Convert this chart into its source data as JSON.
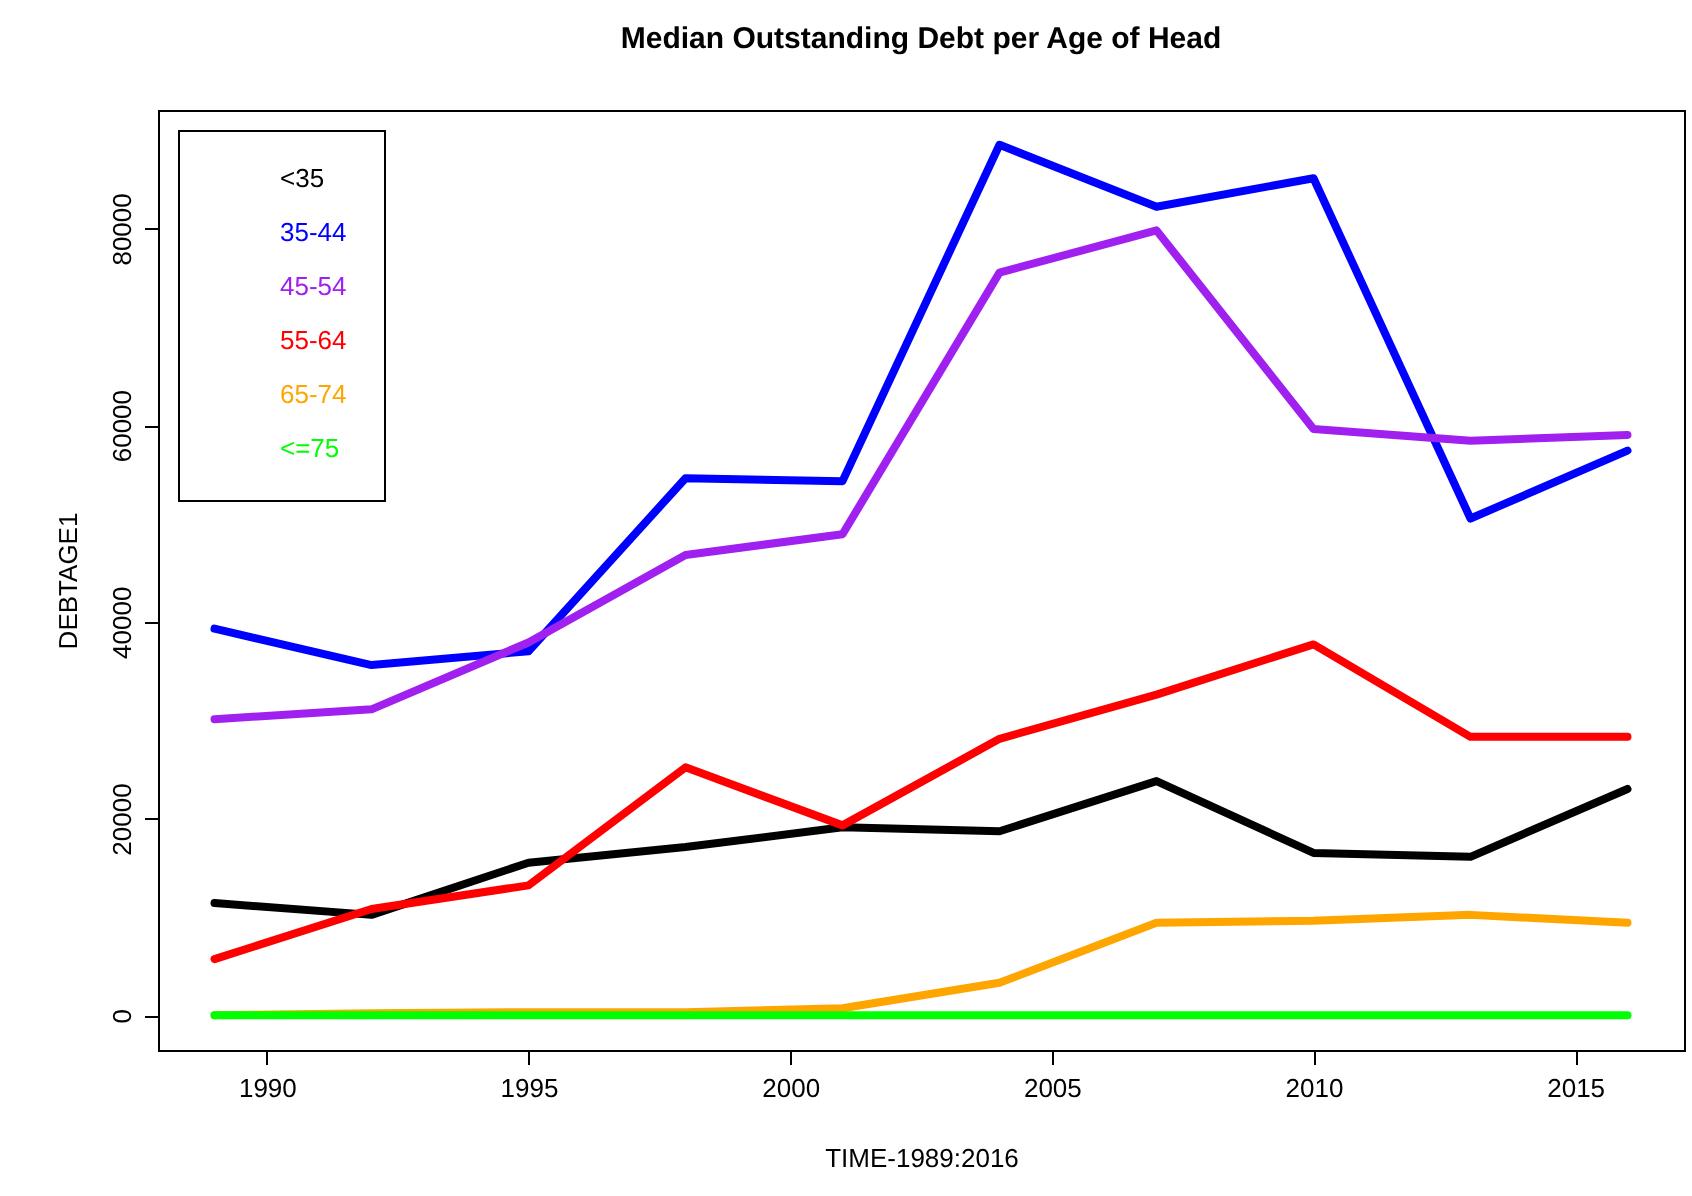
{
  "chart_data": {
    "type": "line",
    "title": "Median Outstanding Debt per Age of Head",
    "xlabel": "TIME-1989:2016",
    "ylabel": "DEBTAGE1",
    "x": [
      1989,
      1992,
      1995,
      1998,
      2001,
      2004,
      2007,
      2010,
      2013,
      2016
    ],
    "series": [
      {
        "name": "<35",
        "color": "#000000",
        "values": [
          11400,
          10200,
          15500,
          17100,
          19100,
          18700,
          23800,
          16500,
          16100,
          23000
        ]
      },
      {
        "name": "35-44",
        "color": "#0000ff",
        "values": [
          39300,
          35600,
          37000,
          54600,
          54300,
          88500,
          82200,
          85100,
          50500,
          57400
        ]
      },
      {
        "name": "45-54",
        "color": "#a020f0",
        "values": [
          30100,
          31100,
          37900,
          46800,
          48900,
          75500,
          79800,
          59600,
          58400,
          59000
        ]
      },
      {
        "name": "55-64",
        "color": "#ff0000",
        "values": [
          5700,
          10800,
          13200,
          25200,
          19300,
          28100,
          32600,
          37700,
          28300,
          28300
        ]
      },
      {
        "name": "65-74",
        "color": "#ffa500",
        "values": [
          0,
          200,
          300,
          300,
          700,
          3300,
          9400,
          9600,
          10200,
          9400
        ]
      },
      {
        "name": "<=75",
        "color": "#00ff00",
        "values": [
          0,
          0,
          0,
          0,
          0,
          0,
          0,
          0,
          0,
          0
        ]
      }
    ],
    "xlim": [
      1987.92,
      2017.08
    ],
    "xticks": [
      1990,
      1995,
      2000,
      2005,
      2010,
      2015
    ],
    "ylim": [
      -3540,
      92040
    ],
    "yticks": [
      0,
      20000,
      40000,
      60000,
      80000
    ],
    "legend": "top left",
    "grid": false,
    "marker": "none",
    "line_style": "solid"
  }
}
